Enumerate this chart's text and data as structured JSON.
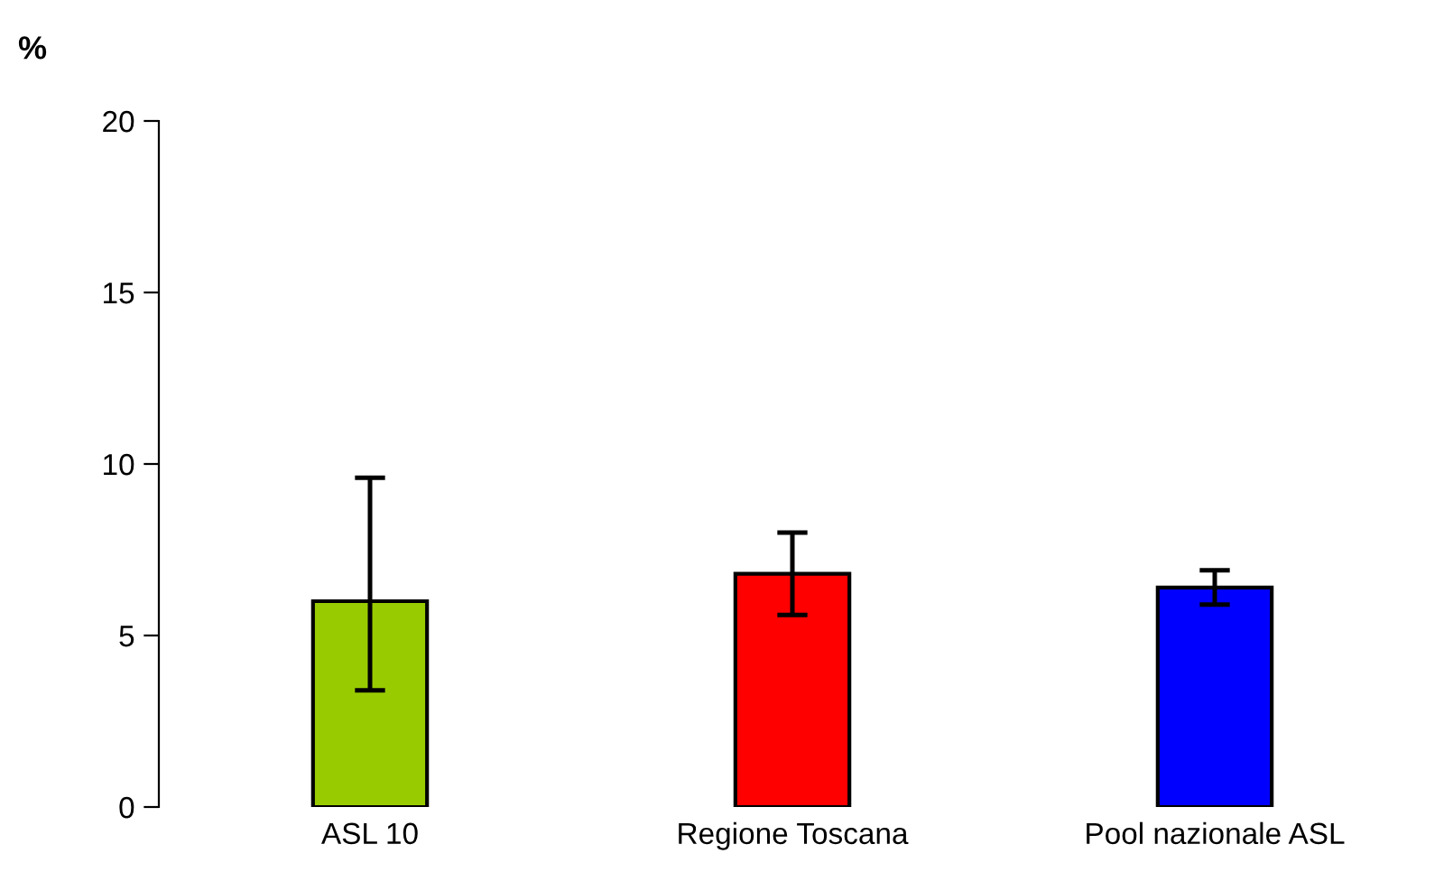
{
  "chart_data": {
    "type": "bar",
    "ylabel": "%",
    "categories": [
      "ASL 10",
      "Regione Toscana",
      "Pool nazionale ASL"
    ],
    "values": [
      6.0,
      6.8,
      6.4
    ],
    "colors": [
      "#99cc00",
      "#ff0000",
      "#0000ff"
    ],
    "errors": [
      [
        3.4,
        9.6
      ],
      [
        5.6,
        8.0
      ],
      [
        5.9,
        6.9
      ]
    ],
    "ylim": [
      0,
      20
    ],
    "yticks": [
      0,
      5,
      10,
      15,
      20
    ],
    "grid": false
  }
}
